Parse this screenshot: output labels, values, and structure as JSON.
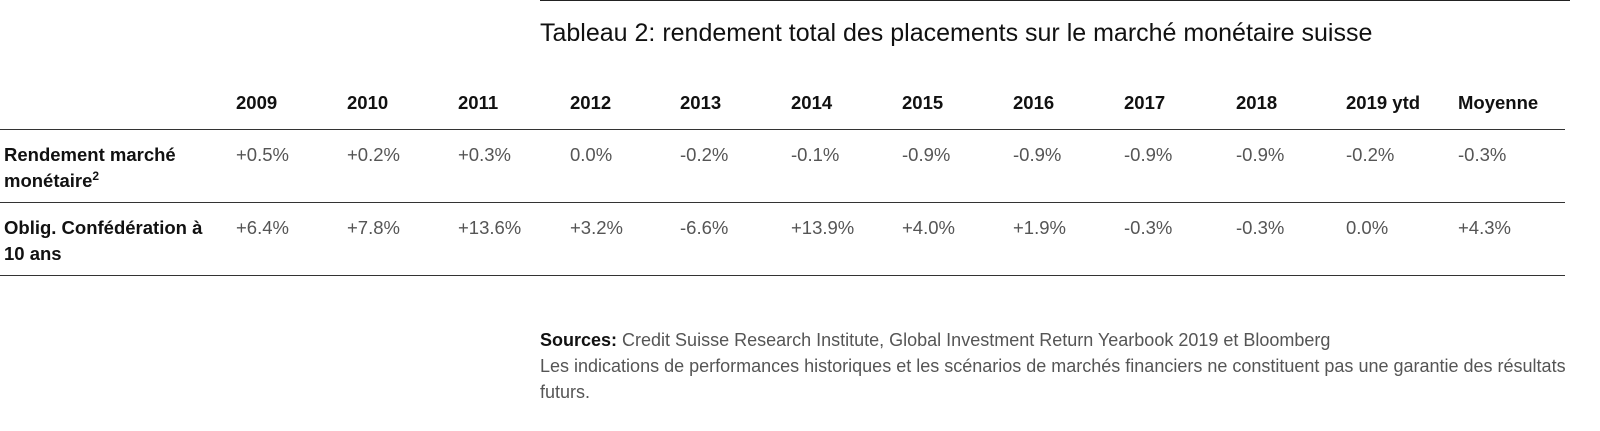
{
  "title": "Tableau 2: rendement total des placements sur le marché monétaire suisse",
  "chart_data": {
    "type": "table",
    "title": "Tableau 2: rendement total des placements sur le marché monétaire suisse",
    "columns": [
      "2009",
      "2010",
      "2011",
      "2012",
      "2013",
      "2014",
      "2015",
      "2016",
      "2017",
      "2018",
      "2019 ytd",
      "Moyenne"
    ],
    "rows": [
      {
        "label": "Rendement marché monétaire",
        "label_sup": "2",
        "values": [
          "+0.5%",
          "+0.2%",
          "+0.3%",
          "0.0%",
          "-0.2%",
          "-0.1%",
          "-0.9%",
          "-0.9%",
          "-0.9%",
          "-0.9%",
          "-0.2%",
          "-0.3%"
        ]
      },
      {
        "label": "Oblig. Confédération à 10 ans",
        "label_sup": "",
        "values": [
          "+6.4%",
          "+7.8%",
          "+13.6%",
          "+3.2%",
          "-6.6%",
          "+13.9%",
          "+4.0%",
          "+1.9%",
          "-0.3%",
          "-0.3%",
          "0.0%",
          "+4.3%"
        ]
      }
    ]
  },
  "sources": {
    "label": "Sources:",
    "text": " Credit Suisse Research Institute, Global Investment Return Yearbook 2019 et Bloomberg",
    "disclaimer": "Les indications de performances historiques et les scénarios de marchés financiers ne constituent pas une garantie des résultats futurs."
  }
}
